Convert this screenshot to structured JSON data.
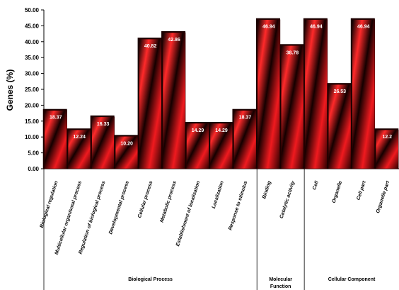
{
  "chart_data": {
    "type": "bar",
    "title": "",
    "xlabel": "",
    "ylabel": "Genes (%)",
    "ylim": [
      0,
      50
    ],
    "ytick_step": 5,
    "ytick_labels": [
      "0.00",
      "5.00",
      "10.00",
      "15.00",
      "20.00",
      "25.00",
      "30.00",
      "35.00",
      "40.00",
      "45.00",
      "50.00"
    ],
    "grid": false,
    "legend": "none",
    "bar_color": "#e8141b",
    "bar_shadow_color": "#000000",
    "categories": [
      "Biological regulation",
      "Multicellular organismal process",
      "Regulation of biological process",
      "Developmental process",
      "Cellular process",
      "Metabolic process",
      "Establishment of localization",
      "Localization",
      "Response to stimulus",
      "Binding",
      "Catalytic activity",
      "Cell",
      "Organelle",
      "Cell part",
      "Organelle part"
    ],
    "values": [
      18.37,
      12.24,
      16.33,
      10.2,
      40.82,
      42.86,
      14.29,
      14.29,
      18.37,
      46.94,
      38.78,
      46.94,
      26.53,
      46.94,
      12.24
    ],
    "value_labels": [
      "18.37",
      "12.24",
      "16.33",
      "10.20",
      "40.82",
      "42.86",
      "14.29",
      "14.29",
      "18.37",
      "46.94",
      "38.78",
      "46.94",
      "26.53",
      "46.94",
      "12.2"
    ],
    "groups": [
      {
        "name": "Biological Process",
        "start": 0,
        "end": 8
      },
      {
        "name": "Molecular Function",
        "start": 9,
        "end": 10
      },
      {
        "name": "Cellular Component",
        "start": 11,
        "end": 14
      }
    ]
  }
}
